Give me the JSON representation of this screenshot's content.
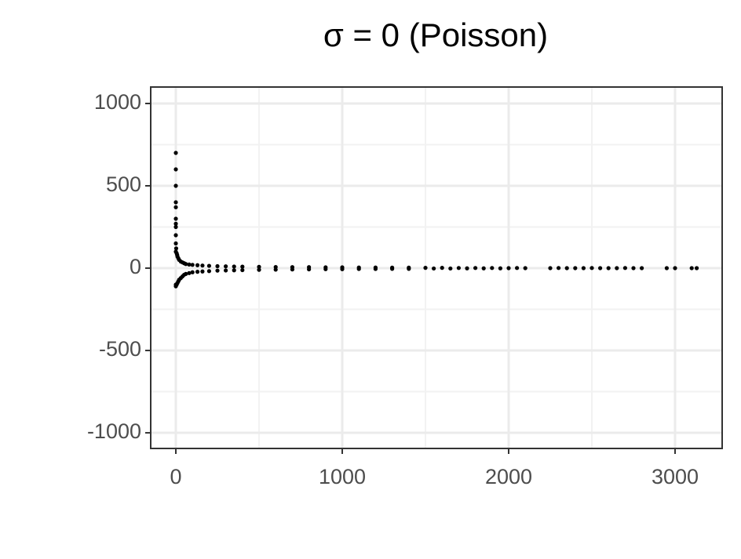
{
  "chart_data": {
    "type": "scatter",
    "title": "σ  = 0 (Poisson)",
    "x": [
      0,
      0,
      0,
      0,
      0,
      0,
      0,
      0,
      0,
      0,
      0,
      0,
      0,
      2,
      5,
      5,
      8,
      10,
      10,
      15,
      15,
      20,
      20,
      30,
      30,
      40,
      40,
      50,
      50,
      60,
      60,
      80,
      80,
      100,
      100,
      130,
      130,
      160,
      160,
      200,
      200,
      250,
      250,
      300,
      300,
      350,
      350,
      400,
      400,
      500,
      500,
      600,
      600,
      700,
      700,
      800,
      800,
      900,
      900,
      1000,
      1000,
      1100,
      1100,
      1200,
      1200,
      1300,
      1300,
      1400,
      1400,
      1500,
      1550,
      1600,
      1650,
      1700,
      1750,
      1800,
      1850,
      1900,
      1950,
      2000,
      2050,
      2100,
      2250,
      2300,
      2350,
      2400,
      2450,
      2500,
      2550,
      2600,
      2650,
      2700,
      2750,
      2800,
      2950,
      3000,
      3100,
      3130
    ],
    "values": [
      700,
      600,
      500,
      400,
      370,
      300,
      270,
      250,
      200,
      150,
      100,
      -100,
      -110,
      120,
      90,
      -100,
      80,
      70,
      -90,
      60,
      -80,
      50,
      -70,
      40,
      -60,
      35,
      -50,
      30,
      -40,
      25,
      -35,
      22,
      -30,
      20,
      -25,
      18,
      -22,
      16,
      -20,
      14,
      -18,
      12,
      -15,
      11,
      -14,
      10,
      -13,
      9,
      -12,
      8,
      -10,
      7,
      -9,
      6,
      -8,
      6,
      -7,
      5,
      -6,
      5,
      -6,
      4,
      -5,
      4,
      -5,
      3,
      -4,
      3,
      -4,
      2,
      -2,
      2,
      -2,
      1,
      -1,
      1,
      -1,
      1,
      -1,
      0,
      1,
      0,
      0,
      1,
      0,
      0,
      0,
      1,
      0,
      0,
      0,
      1,
      0,
      0,
      0,
      0,
      0,
      0
    ],
    "color": "#000000",
    "xlim": [
      -151,
      3283
    ],
    "xticks": [
      0,
      1000,
      2000,
      3000
    ],
    "xminor": [
      500,
      1500,
      2500
    ],
    "ylim": [
      -1095,
      1100
    ],
    "yticks": [
      1000,
      500,
      0,
      -500,
      -1000
    ],
    "yminor": [
      750,
      250,
      -250,
      -750
    ],
    "grid": true
  }
}
